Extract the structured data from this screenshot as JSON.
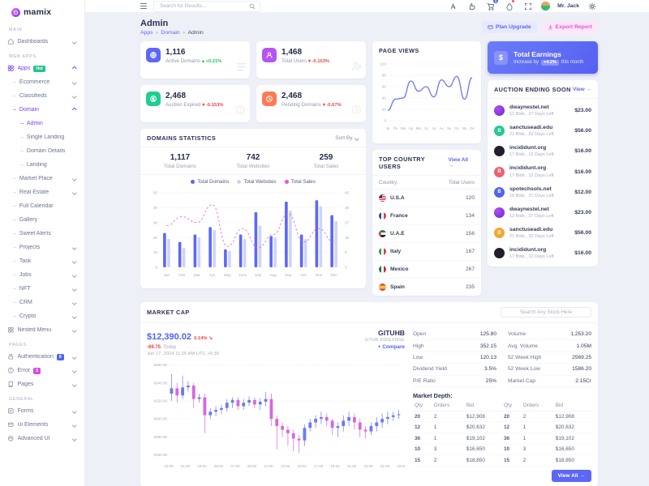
{
  "brand": {
    "name": "mamix"
  },
  "header": {
    "search_placeholder": "Search for Results...",
    "cart_badge": "5",
    "user_name": "Mr. Jack"
  },
  "page": {
    "title": "Admin",
    "breadcrumb": [
      "Apps",
      "Domain",
      "Admin"
    ],
    "plan_upgrade_label": "Plan Upgrade",
    "export_report_label": "Export Report"
  },
  "sidebar": {
    "items": [
      {
        "type": "section",
        "label": "MAIN"
      },
      {
        "type": "item",
        "icon": "home-icon",
        "label": "Dashboards",
        "chevron": "down"
      },
      {
        "type": "section",
        "label": "WEB APPS"
      },
      {
        "type": "item",
        "icon": "apps-icon",
        "label": "Apps",
        "badge": "Hot",
        "badge_style": "hot",
        "chevron": "up",
        "active": true
      },
      {
        "type": "sub",
        "label": "Ecommerce",
        "chevron": "down"
      },
      {
        "type": "sub",
        "label": "Classifieds",
        "chevron": "down"
      },
      {
        "type": "sub",
        "label": "Domain",
        "chevron": "up",
        "active": true
      },
      {
        "type": "sub2",
        "label": "Admin",
        "active": true
      },
      {
        "type": "sub2",
        "label": "Single Landing"
      },
      {
        "type": "sub2",
        "label": "Domain Details"
      },
      {
        "type": "sub2",
        "label": "Landing"
      },
      {
        "type": "sub",
        "label": "Market Place",
        "chevron": "down"
      },
      {
        "type": "sub",
        "label": "Real Estate",
        "chevron": "down"
      },
      {
        "type": "sub",
        "label": "Full Calendar"
      },
      {
        "type": "sub",
        "label": "Gallery"
      },
      {
        "type": "sub",
        "label": "Sweet Alerts"
      },
      {
        "type": "sub",
        "label": "Projects",
        "chevron": "down"
      },
      {
        "type": "sub",
        "label": "Task",
        "chevron": "down"
      },
      {
        "type": "sub",
        "label": "Jobs",
        "chevron": "down"
      },
      {
        "type": "sub",
        "label": "NFT",
        "chevron": "down"
      },
      {
        "type": "sub",
        "label": "CRM",
        "chevron": "down"
      },
      {
        "type": "sub",
        "label": "Crypto",
        "chevron": "down"
      },
      {
        "type": "item",
        "icon": "nested-icon",
        "label": "Nested Menu",
        "chevron": "down"
      },
      {
        "type": "section",
        "label": "PAGES"
      },
      {
        "type": "item",
        "icon": "lock-icon",
        "label": "Authentication",
        "badge": "8",
        "badge_style": "blue",
        "chevron": "down"
      },
      {
        "type": "item",
        "icon": "error-icon",
        "label": "Error",
        "badge": "3",
        "badge_style": "magenta",
        "chevron": "down"
      },
      {
        "type": "item",
        "icon": "pages-icon",
        "label": "Pages",
        "chevron": "down"
      },
      {
        "type": "section",
        "label": "GENERAL"
      },
      {
        "type": "item",
        "icon": "forms-icon",
        "label": "Forms",
        "chevron": "down"
      },
      {
        "type": "item",
        "icon": "ui-icon",
        "label": "Ui Elements",
        "chevron": "down"
      },
      {
        "type": "item",
        "icon": "advanced-icon",
        "label": "Advanced UI",
        "chevron": "down"
      }
    ]
  },
  "stat_cards": [
    {
      "value": "1,116",
      "label": "Active Domains",
      "delta": "+0.21%",
      "direction": "up",
      "icon": "domains-icon",
      "accent": "#5c67f7",
      "watermark": "list-icon",
      "wm_color": "#c9d2fb"
    },
    {
      "value": "1,468",
      "label": "Total Users",
      "delta": "-0.153%",
      "direction": "down",
      "icon": "users-icon",
      "accent": "#b554f2",
      "watermark": "user-plus-icon",
      "wm_color": "#d4d8e6"
    },
    {
      "value": "2,468",
      "label": "Auction Expired",
      "delta": "-0.153%",
      "direction": "down",
      "icon": "auction-icon",
      "accent": "#1fce8f",
      "watermark": "alert-circle-icon",
      "wm_color": "#f8d7d7"
    },
    {
      "value": "2,468",
      "label": "Pending Domains",
      "delta": "-0.67%",
      "direction": "down",
      "icon": "pending-icon",
      "accent": "#ff7a52",
      "watermark": "clock-icon",
      "wm_color": "#fcdccf"
    }
  ],
  "earnings": {
    "currency": "$",
    "title": "Total Earnings",
    "prefix": "Increase by",
    "badge": "+4.2%",
    "suffix": "this month"
  },
  "auction": {
    "title": "AUCTION ENDING SOON",
    "view_label": "View →",
    "items": [
      {
        "name": "dwaynestel.net",
        "meta": "12 Bids , 27 Days Left",
        "price": "$23.00",
        "avatar": "purple",
        "avatar_letter": ""
      },
      {
        "name": "sanctuseadi.edu",
        "meta": "21 Bids , 32 Days Left",
        "price": "$56.00",
        "avatar": "green",
        "avatar_letter": "B"
      },
      {
        "name": "incididunt.org",
        "meta": "17 Bids , 12 Days Left",
        "price": "$16.00",
        "avatar": "dark",
        "avatar_letter": ""
      },
      {
        "name": "incididunt.org",
        "meta": "17 Bids , 12 Days Left",
        "price": "$16.00",
        "avatar": "red",
        "avatar_letter": "B"
      },
      {
        "name": "spotechsols.net",
        "meta": "10 Bids , 27 Days Left",
        "price": "$12.00",
        "avatar": "blue",
        "avatar_letter": "B"
      },
      {
        "name": "dwaynestel.net",
        "meta": "12 Bids , 27 Days Left",
        "price": "$23.00",
        "avatar": "purple",
        "avatar_letter": ""
      },
      {
        "name": "sanctuseadi.edu",
        "meta": "21 Bids , 32 Days Left",
        "price": "$56.00",
        "avatar": "orange",
        "avatar_letter": "B"
      },
      {
        "name": "incididunt.org",
        "meta": "17 Bids , 12 Days Left",
        "price": "$16.00",
        "avatar": "dark",
        "avatar_letter": ""
      }
    ]
  },
  "domains_stats": {
    "title": "DOMAINS STATISTICS",
    "sort_label": "Sort By",
    "stats": [
      {
        "value": "1,117",
        "label": "Total Domains"
      },
      {
        "value": "742",
        "label": "Total Websites"
      },
      {
        "value": "259",
        "label": "Total Sales"
      }
    ]
  },
  "countries": {
    "title": "TOP COUNTRY USERS",
    "view_label": "View All →",
    "col_country": "Country",
    "col_users": "Total Users",
    "rows": [
      {
        "name": "U.S.A",
        "users": "120",
        "flag": "usa"
      },
      {
        "name": "France",
        "users": "134",
        "flag": "france"
      },
      {
        "name": "U.A.E",
        "users": "156",
        "flag": "uae"
      },
      {
        "name": "Italy",
        "users": "167",
        "flag": "italy"
      },
      {
        "name": "Mexico",
        "users": "267",
        "flag": "mexico"
      },
      {
        "name": "Spain",
        "users": "235",
        "flag": "spain"
      }
    ]
  },
  "market_cap": {
    "title": "MARKET CAP",
    "search_placeholder": "Search Any Stock Here",
    "price": "$12,390.02",
    "change_pct": "0.14%",
    "change_abs": "-89.75",
    "change_period": ", Today",
    "datetime": "Jun 17, 2024 11:25 AM UTC +5:30",
    "stock_name": "GITUHB",
    "stock_sub": "GTHB INDEXNSE",
    "compare_label": "+ Compare",
    "details": [
      {
        "label": "Open",
        "value": "125.80"
      },
      {
        "label": "High",
        "value": "352.15"
      },
      {
        "label": "Low",
        "value": "120.13"
      },
      {
        "label": "Dividend Yield",
        "value": "3.5%"
      },
      {
        "label": "P/E Ratio",
        "value": "25%"
      },
      {
        "label": "Volume",
        "value": "1,253.20"
      },
      {
        "label": "Avg. Volume",
        "value": "1.05M"
      },
      {
        "label": "52 Week High",
        "value": "2569.25"
      },
      {
        "label": "52 Week Low",
        "value": "1586.20"
      },
      {
        "label": "Market Cap",
        "value": "2.15Cr"
      }
    ],
    "depth": {
      "title": "Market Depth:",
      "headers": [
        "Qty",
        "Orders",
        "Bid",
        "Qty",
        "Orders",
        "Bid"
      ],
      "rows": [
        [
          "20",
          "2",
          "$12,908",
          "20",
          "2",
          "$12,908"
        ],
        [
          "12",
          "1",
          "$20,632",
          "12",
          "1",
          "$20,632"
        ],
        [
          "36",
          "1",
          "$19,102",
          "36",
          "1",
          "$19,102"
        ],
        [
          "10",
          "3",
          "$16,650",
          "10",
          "3",
          "$16,650"
        ],
        [
          "15",
          "2",
          "$18,850",
          "15",
          "2",
          "$18,850"
        ]
      ],
      "view_all_label": "View All →"
    }
  },
  "chart_data": [
    {
      "type": "line",
      "title": "PAGE VIEWS",
      "x": [
        "Ja",
        "Fe",
        "Ma",
        "Ap",
        "Ma",
        "Ju",
        "Ju",
        "Au",
        "Se",
        "Oc",
        "No",
        "De"
      ],
      "values": [
        18,
        38,
        40,
        70,
        52,
        60,
        42,
        72,
        60,
        78,
        38,
        76
      ],
      "ylim": [
        0,
        100
      ],
      "yticks": [
        0,
        20,
        40,
        60,
        80,
        100
      ],
      "color": "#6d79f6",
      "grid": true,
      "legend_position": "none"
    },
    {
      "type": "bar",
      "title": "DOMAINS STATISTICS",
      "categories": [
        "Jan",
        "Feb",
        "Mar",
        "Apr",
        "May",
        "June",
        "July",
        "Aug",
        "Sep",
        "Oct",
        "Nov",
        "Dec"
      ],
      "series": [
        {
          "name": "Total Domains",
          "kind": "bar",
          "values": [
            23,
            17,
            22,
            27,
            12,
            22,
            37,
            21,
            44,
            22,
            45,
            35
          ],
          "color": "#5c67f7"
        },
        {
          "name": "Total Websites",
          "kind": "bar",
          "values": [
            19,
            13,
            20,
            25,
            11,
            19,
            28,
            20,
            38,
            19,
            41,
            31
          ],
          "color": "#ccd4fb"
        },
        {
          "name": "Total Sales",
          "kind": "dashed-line",
          "values": [
            28,
            34,
            30,
            42,
            14,
            26,
            13,
            22,
            36,
            17,
            26,
            17
          ],
          "color": "#e354d4"
        }
      ],
      "ylim_left": [
        0,
        50
      ],
      "yticks_left": [
        0,
        10,
        20,
        30,
        40,
        50
      ],
      "yticks_right": [
        0,
        9,
        18,
        27,
        36,
        45
      ],
      "grid": true,
      "legend_position": "top"
    },
    {
      "type": "candlestick",
      "title": "MARKET CAP",
      "x_labels": [
        "23:00",
        "01:00",
        "03:00",
        "05:00",
        "07:00",
        "09:00",
        "11:00",
        "13:00",
        "15:00",
        "17:00",
        "19:00",
        "21:00",
        "23:00",
        "01:00",
        "03:00"
      ],
      "ytick_labels": [
        "6660.00",
        "6640.00",
        "6620.00",
        "6600.00",
        "6580.00",
        "6560.00"
      ],
      "ylim": [
        6556,
        6664
      ],
      "up_color": "#6d79f6",
      "down_color": "#d667df",
      "ohlc": [
        [
          6628,
          6650,
          6620,
          6634
        ],
        [
          6634,
          6640,
          6618,
          6626
        ],
        [
          6626,
          6648,
          6622,
          6635
        ],
        [
          6635,
          6642,
          6630,
          6637
        ],
        [
          6637,
          6640,
          6612,
          6622
        ],
        [
          6622,
          6628,
          6618,
          6624
        ],
        [
          6624,
          6628,
          6584,
          6604
        ],
        [
          6604,
          6612,
          6600,
          6608
        ],
        [
          6608,
          6614,
          6603,
          6610
        ],
        [
          6610,
          6616,
          6605,
          6612
        ],
        [
          6612,
          6622,
          6608,
          6618
        ],
        [
          6618,
          6624,
          6612,
          6621
        ],
        [
          6621,
          6624,
          6610,
          6614
        ],
        [
          6614,
          6622,
          6610,
          6618
        ],
        [
          6618,
          6625,
          6614,
          6621
        ],
        [
          6621,
          6624,
          6612,
          6616
        ],
        [
          6616,
          6623,
          6610,
          6619
        ],
        [
          6619,
          6630,
          6614,
          6622
        ],
        [
          6622,
          6628,
          6592,
          6600
        ],
        [
          6600,
          6604,
          6566,
          6592
        ],
        [
          6592,
          6596,
          6580,
          6588
        ],
        [
          6588,
          6592,
          6570,
          6584
        ],
        [
          6584,
          6588,
          6564,
          6578
        ],
        [
          6578,
          6582,
          6562,
          6576
        ],
        [
          6576,
          6594,
          6570,
          6590
        ],
        [
          6590,
          6600,
          6586,
          6596
        ],
        [
          6596,
          6604,
          6590,
          6600
        ],
        [
          6600,
          6608,
          6594,
          6602
        ],
        [
          6602,
          6606,
          6592,
          6598
        ],
        [
          6598,
          6600,
          6582,
          6590
        ],
        [
          6590,
          6596,
          6580,
          6592
        ],
        [
          6592,
          6604,
          6586,
          6598
        ],
        [
          6598,
          6608,
          6592,
          6602
        ],
        [
          6602,
          6606,
          6588,
          6596
        ],
        [
          6596,
          6600,
          6580,
          6588
        ],
        [
          6588,
          6592,
          6578,
          6586
        ],
        [
          6586,
          6596,
          6582,
          6592
        ],
        [
          6592,
          6602,
          6586,
          6596
        ],
        [
          6596,
          6606,
          6590,
          6600
        ],
        [
          6600,
          6608,
          6594,
          6602
        ],
        [
          6602,
          6608,
          6598,
          6604
        ],
        [
          6604,
          6610,
          6600,
          6605
        ]
      ]
    }
  ]
}
